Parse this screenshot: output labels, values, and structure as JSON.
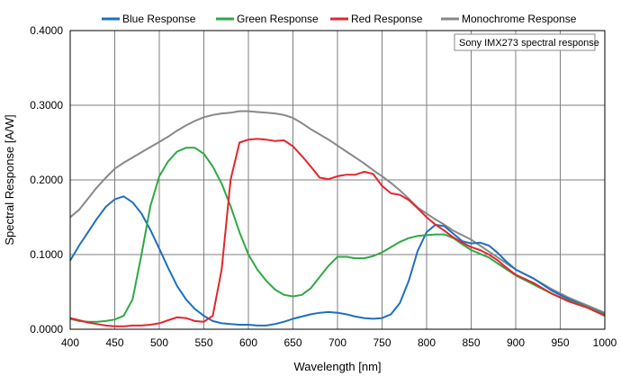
{
  "chart_data": {
    "type": "line",
    "xlabel": "Wavelength [nm]",
    "ylabel": "Spectral Response [A/W]",
    "xlim": [
      400,
      1000
    ],
    "ylim": [
      0,
      0.4
    ],
    "x_ticks": [
      "400",
      "450",
      "500",
      "550",
      "600",
      "650",
      "700",
      "750",
      "800",
      "850",
      "900",
      "950",
      "1000"
    ],
    "y_ticks": [
      "0.0000",
      "0.1000",
      "0.2000",
      "0.3000",
      "0.4000"
    ],
    "grid": true,
    "legend_position": "top",
    "annotation": "Sony IMX273 spectral response",
    "series": [
      {
        "name": "Blue Response",
        "color": "#1f6fc1",
        "points": [
          [
            400,
            0.092
          ],
          [
            410,
            0.112
          ],
          [
            420,
            0.13
          ],
          [
            430,
            0.148
          ],
          [
            440,
            0.164
          ],
          [
            450,
            0.174
          ],
          [
            460,
            0.178
          ],
          [
            470,
            0.17
          ],
          [
            480,
            0.155
          ],
          [
            490,
            0.133
          ],
          [
            500,
            0.108
          ],
          [
            510,
            0.082
          ],
          [
            520,
            0.058
          ],
          [
            530,
            0.04
          ],
          [
            540,
            0.027
          ],
          [
            550,
            0.018
          ],
          [
            560,
            0.011
          ],
          [
            570,
            0.008
          ],
          [
            580,
            0.007
          ],
          [
            590,
            0.006
          ],
          [
            600,
            0.006
          ],
          [
            610,
            0.005
          ],
          [
            620,
            0.005
          ],
          [
            630,
            0.007
          ],
          [
            640,
            0.01
          ],
          [
            650,
            0.014
          ],
          [
            660,
            0.017
          ],
          [
            670,
            0.02
          ],
          [
            680,
            0.022
          ],
          [
            690,
            0.023
          ],
          [
            700,
            0.022
          ],
          [
            710,
            0.02
          ],
          [
            720,
            0.017
          ],
          [
            730,
            0.015
          ],
          [
            740,
            0.014
          ],
          [
            750,
            0.015
          ],
          [
            760,
            0.02
          ],
          [
            770,
            0.035
          ],
          [
            780,
            0.065
          ],
          [
            790,
            0.105
          ],
          [
            800,
            0.13
          ],
          [
            810,
            0.14
          ],
          [
            820,
            0.138
          ],
          [
            830,
            0.128
          ],
          [
            840,
            0.118
          ],
          [
            850,
            0.115
          ],
          [
            860,
            0.116
          ],
          [
            870,
            0.112
          ],
          [
            880,
            0.102
          ],
          [
            890,
            0.09
          ],
          [
            900,
            0.08
          ],
          [
            920,
            0.068
          ],
          [
            940,
            0.052
          ],
          [
            960,
            0.04
          ],
          [
            980,
            0.03
          ],
          [
            1000,
            0.02
          ]
        ]
      },
      {
        "name": "Green Response",
        "color": "#2ea845",
        "points": [
          [
            400,
            0.014
          ],
          [
            410,
            0.011
          ],
          [
            420,
            0.01
          ],
          [
            430,
            0.01
          ],
          [
            440,
            0.011
          ],
          [
            450,
            0.013
          ],
          [
            460,
            0.018
          ],
          [
            470,
            0.04
          ],
          [
            480,
            0.1
          ],
          [
            490,
            0.165
          ],
          [
            500,
            0.205
          ],
          [
            510,
            0.225
          ],
          [
            520,
            0.238
          ],
          [
            530,
            0.243
          ],
          [
            540,
            0.243
          ],
          [
            550,
            0.235
          ],
          [
            560,
            0.218
          ],
          [
            570,
            0.195
          ],
          [
            580,
            0.165
          ],
          [
            590,
            0.13
          ],
          [
            600,
            0.1
          ],
          [
            610,
            0.08
          ],
          [
            620,
            0.065
          ],
          [
            630,
            0.053
          ],
          [
            640,
            0.046
          ],
          [
            650,
            0.044
          ],
          [
            660,
            0.046
          ],
          [
            670,
            0.055
          ],
          [
            680,
            0.07
          ],
          [
            690,
            0.085
          ],
          [
            700,
            0.097
          ],
          [
            710,
            0.097
          ],
          [
            720,
            0.095
          ],
          [
            730,
            0.095
          ],
          [
            740,
            0.098
          ],
          [
            750,
            0.103
          ],
          [
            760,
            0.11
          ],
          [
            770,
            0.117
          ],
          [
            780,
            0.122
          ],
          [
            790,
            0.125
          ],
          [
            800,
            0.126
          ],
          [
            810,
            0.127
          ],
          [
            820,
            0.127
          ],
          [
            830,
            0.122
          ],
          [
            840,
            0.114
          ],
          [
            850,
            0.106
          ],
          [
            860,
            0.101
          ],
          [
            870,
            0.096
          ],
          [
            880,
            0.088
          ],
          [
            890,
            0.08
          ],
          [
            900,
            0.072
          ],
          [
            920,
            0.06
          ],
          [
            940,
            0.048
          ],
          [
            960,
            0.038
          ],
          [
            980,
            0.03
          ],
          [
            1000,
            0.019
          ]
        ]
      },
      {
        "name": "Red Response",
        "color": "#e3262e",
        "points": [
          [
            400,
            0.015
          ],
          [
            410,
            0.012
          ],
          [
            420,
            0.009
          ],
          [
            430,
            0.007
          ],
          [
            440,
            0.005
          ],
          [
            450,
            0.004
          ],
          [
            460,
            0.004
          ],
          [
            470,
            0.005
          ],
          [
            480,
            0.005
          ],
          [
            490,
            0.006
          ],
          [
            500,
            0.008
          ],
          [
            510,
            0.012
          ],
          [
            520,
            0.016
          ],
          [
            530,
            0.015
          ],
          [
            540,
            0.011
          ],
          [
            550,
            0.01
          ],
          [
            560,
            0.018
          ],
          [
            570,
            0.08
          ],
          [
            580,
            0.2
          ],
          [
            590,
            0.25
          ],
          [
            600,
            0.254
          ],
          [
            610,
            0.255
          ],
          [
            620,
            0.254
          ],
          [
            630,
            0.252
          ],
          [
            640,
            0.253
          ],
          [
            650,
            0.245
          ],
          [
            660,
            0.232
          ],
          [
            670,
            0.218
          ],
          [
            680,
            0.203
          ],
          [
            690,
            0.201
          ],
          [
            700,
            0.205
          ],
          [
            710,
            0.207
          ],
          [
            720,
            0.207
          ],
          [
            730,
            0.211
          ],
          [
            740,
            0.208
          ],
          [
            750,
            0.192
          ],
          [
            760,
            0.182
          ],
          [
            770,
            0.18
          ],
          [
            780,
            0.173
          ],
          [
            790,
            0.162
          ],
          [
            800,
            0.15
          ],
          [
            810,
            0.14
          ],
          [
            820,
            0.132
          ],
          [
            830,
            0.123
          ],
          [
            840,
            0.116
          ],
          [
            850,
            0.11
          ],
          [
            860,
            0.106
          ],
          [
            870,
            0.1
          ],
          [
            880,
            0.092
          ],
          [
            890,
            0.082
          ],
          [
            900,
            0.073
          ],
          [
            920,
            0.062
          ],
          [
            940,
            0.048
          ],
          [
            960,
            0.037
          ],
          [
            980,
            0.029
          ],
          [
            1000,
            0.018
          ]
        ]
      },
      {
        "name": "Monochrome Response",
        "color": "#888888",
        "points": [
          [
            400,
            0.15
          ],
          [
            410,
            0.16
          ],
          [
            420,
            0.175
          ],
          [
            430,
            0.19
          ],
          [
            440,
            0.203
          ],
          [
            450,
            0.215
          ],
          [
            460,
            0.223
          ],
          [
            470,
            0.23
          ],
          [
            480,
            0.237
          ],
          [
            490,
            0.244
          ],
          [
            500,
            0.251
          ],
          [
            510,
            0.258
          ],
          [
            520,
            0.266
          ],
          [
            530,
            0.273
          ],
          [
            540,
            0.279
          ],
          [
            550,
            0.284
          ],
          [
            560,
            0.287
          ],
          [
            570,
            0.289
          ],
          [
            580,
            0.29
          ],
          [
            590,
            0.292
          ],
          [
            600,
            0.292
          ],
          [
            610,
            0.291
          ],
          [
            620,
            0.29
          ],
          [
            630,
            0.289
          ],
          [
            640,
            0.287
          ],
          [
            650,
            0.283
          ],
          [
            660,
            0.276
          ],
          [
            670,
            0.268
          ],
          [
            680,
            0.261
          ],
          [
            690,
            0.254
          ],
          [
            700,
            0.246
          ],
          [
            710,
            0.238
          ],
          [
            720,
            0.23
          ],
          [
            730,
            0.222
          ],
          [
            740,
            0.213
          ],
          [
            750,
            0.205
          ],
          [
            760,
            0.196
          ],
          [
            770,
            0.186
          ],
          [
            780,
            0.175
          ],
          [
            790,
            0.163
          ],
          [
            800,
            0.155
          ],
          [
            810,
            0.147
          ],
          [
            820,
            0.14
          ],
          [
            830,
            0.132
          ],
          [
            840,
            0.126
          ],
          [
            850,
            0.12
          ],
          [
            860,
            0.112
          ],
          [
            870,
            0.104
          ],
          [
            880,
            0.096
          ],
          [
            890,
            0.088
          ],
          [
            900,
            0.08
          ],
          [
            920,
            0.068
          ],
          [
            940,
            0.054
          ],
          [
            960,
            0.042
          ],
          [
            980,
            0.032
          ],
          [
            1000,
            0.022
          ]
        ]
      }
    ]
  }
}
